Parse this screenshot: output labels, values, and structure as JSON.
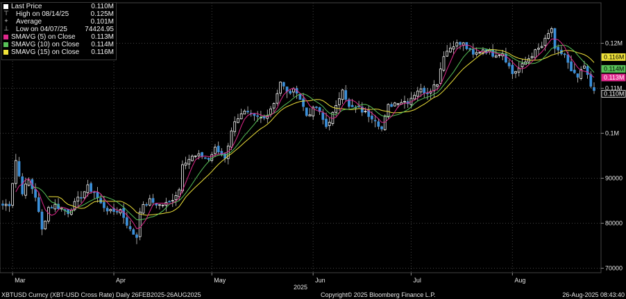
{
  "legend": {
    "items": [
      {
        "label": "Last Price",
        "value": "0.110M",
        "color": "#ffffff",
        "icon": "square-swatch"
      },
      {
        "label": "High on 08/14/25",
        "value": "0.125M",
        "color": "#ffffff",
        "icon": "high-marker"
      },
      {
        "label": "Average",
        "value": "0.101M",
        "color": "#cccccc",
        "icon": "average-marker"
      },
      {
        "label": "Low on 04/07/25",
        "value": "74424.95",
        "color": "#cccccc",
        "icon": "low-marker"
      },
      {
        "label": "SMAVG (5)  on Close",
        "value": "0.113M",
        "color": "#e0288c",
        "icon": "square-swatch"
      },
      {
        "label": "SMAVG (10)  on Close",
        "value": "0.114M",
        "color": "#58c258",
        "icon": "square-swatch"
      },
      {
        "label": "SMAVG (15)  on Close",
        "value": "0.116M",
        "color": "#f0e33a",
        "icon": "square-swatch"
      }
    ]
  },
  "footer": {
    "left": "XBTUSD Curncy (XBT-USD Cross Rate)  Daily 26FEB2025-26AUG2025",
    "center": "Copyright© 2025 Bloomberg Finance L.P.",
    "right": "26-Aug-2025 08:43:40"
  },
  "chart_data": {
    "type": "candlestick",
    "y_axis": {
      "side": "right",
      "ticks": [
        {
          "value": 70000,
          "label": "70000"
        },
        {
          "value": 80000,
          "label": "80000"
        },
        {
          "value": 90000,
          "label": "90000"
        },
        {
          "value": 100000,
          "label": "0.1M"
        },
        {
          "value": 110000,
          "label": "0.11M"
        },
        {
          "value": 120000,
          "label": "0.12M"
        }
      ],
      "range": [
        69000,
        129000
      ],
      "grid": true
    },
    "x_axis": {
      "months": [
        {
          "label": "Mar",
          "date": "2025-03-01"
        },
        {
          "label": "Apr",
          "date": "2025-04-01"
        },
        {
          "label": "May",
          "date": "2025-05-01"
        },
        {
          "label": "Jun",
          "date": "2025-06-01"
        },
        {
          "label": "Jul",
          "date": "2025-07-01"
        },
        {
          "label": "Aug",
          "date": "2025-08-01"
        }
      ],
      "year_label": "2025",
      "start": "2025-02-26",
      "end": "2025-08-26",
      "grid": true
    },
    "series_colors": {
      "up": "#ffffff",
      "down": "#3b8fd9",
      "sma5": "#e0288c",
      "sma10": "#58c258",
      "sma15": "#f0e33a"
    },
    "last_value_labels": [
      {
        "value": 116000,
        "label": "0.116M",
        "color": "#f0e33a"
      },
      {
        "value": 114000,
        "label": "0.114M",
        "color": "#58c258"
      },
      {
        "value": 113000,
        "label": "0.113M",
        "color": "#e0288c"
      },
      {
        "value": 110000,
        "label": "0.110M",
        "color": "#ffffff"
      }
    ],
    "closes": [
      {
        "date": "2025-02-26",
        "close": 84000
      },
      {
        "date": "2025-02-28",
        "close": 84300
      },
      {
        "date": "2025-03-02",
        "close": 94000
      },
      {
        "date": "2025-03-04",
        "close": 87000
      },
      {
        "date": "2025-03-06",
        "close": 89500
      },
      {
        "date": "2025-03-08",
        "close": 86000
      },
      {
        "date": "2025-03-10",
        "close": 78500
      },
      {
        "date": "2025-03-12",
        "close": 83500
      },
      {
        "date": "2025-03-14",
        "close": 84000
      },
      {
        "date": "2025-03-18",
        "close": 82500
      },
      {
        "date": "2025-03-20",
        "close": 84300
      },
      {
        "date": "2025-03-24",
        "close": 88000
      },
      {
        "date": "2025-03-26",
        "close": 86900
      },
      {
        "date": "2025-03-28",
        "close": 84300
      },
      {
        "date": "2025-03-31",
        "close": 82500
      },
      {
        "date": "2025-04-03",
        "close": 83000
      },
      {
        "date": "2025-04-06",
        "close": 78400
      },
      {
        "date": "2025-04-08",
        "close": 77000
      },
      {
        "date": "2025-04-09",
        "close": 83000
      },
      {
        "date": "2025-04-12",
        "close": 85000
      },
      {
        "date": "2025-04-15",
        "close": 84000
      },
      {
        "date": "2025-04-18",
        "close": 84500
      },
      {
        "date": "2025-04-21",
        "close": 87500
      },
      {
        "date": "2025-04-22",
        "close": 93500
      },
      {
        "date": "2025-04-25",
        "close": 94700
      },
      {
        "date": "2025-04-28",
        "close": 95000
      },
      {
        "date": "2025-04-30",
        "close": 94200
      },
      {
        "date": "2025-05-02",
        "close": 96500
      },
      {
        "date": "2025-05-05",
        "close": 94700
      },
      {
        "date": "2025-05-08",
        "close": 103000
      },
      {
        "date": "2025-05-11",
        "close": 104500
      },
      {
        "date": "2025-05-14",
        "close": 103500
      },
      {
        "date": "2025-05-17",
        "close": 103300
      },
      {
        "date": "2025-05-20",
        "close": 106800
      },
      {
        "date": "2025-05-22",
        "close": 111500
      },
      {
        "date": "2025-05-24",
        "close": 109000
      },
      {
        "date": "2025-05-27",
        "close": 109500
      },
      {
        "date": "2025-05-30",
        "close": 104000
      },
      {
        "date": "2025-06-02",
        "close": 105800
      },
      {
        "date": "2025-06-05",
        "close": 101500
      },
      {
        "date": "2025-06-08",
        "close": 105700
      },
      {
        "date": "2025-06-10",
        "close": 110200
      },
      {
        "date": "2025-06-12",
        "close": 105700
      },
      {
        "date": "2025-06-15",
        "close": 105500
      },
      {
        "date": "2025-06-17",
        "close": 104500
      },
      {
        "date": "2025-06-20",
        "close": 103300
      },
      {
        "date": "2025-06-22",
        "close": 100900
      },
      {
        "date": "2025-06-24",
        "close": 106000
      },
      {
        "date": "2025-06-27",
        "close": 107100
      },
      {
        "date": "2025-06-30",
        "close": 107100
      },
      {
        "date": "2025-07-03",
        "close": 109600
      },
      {
        "date": "2025-07-06",
        "close": 109200
      },
      {
        "date": "2025-07-09",
        "close": 111300
      },
      {
        "date": "2025-07-11",
        "close": 117500
      },
      {
        "date": "2025-07-14",
        "close": 119800
      },
      {
        "date": "2025-07-17",
        "close": 119800
      },
      {
        "date": "2025-07-20",
        "close": 117300
      },
      {
        "date": "2025-07-23",
        "close": 118700
      },
      {
        "date": "2025-07-26",
        "close": 117600
      },
      {
        "date": "2025-07-29",
        "close": 117900
      },
      {
        "date": "2025-08-01",
        "close": 113300
      },
      {
        "date": "2025-08-04",
        "close": 115000
      },
      {
        "date": "2025-08-07",
        "close": 117500
      },
      {
        "date": "2025-08-10",
        "close": 119300
      },
      {
        "date": "2025-08-13",
        "close": 123300
      },
      {
        "date": "2025-08-14",
        "close": 118300
      },
      {
        "date": "2025-08-17",
        "close": 117500
      },
      {
        "date": "2025-08-19",
        "close": 113500
      },
      {
        "date": "2025-08-21",
        "close": 112400
      },
      {
        "date": "2025-08-23",
        "close": 114800
      },
      {
        "date": "2025-08-25",
        "close": 110500
      },
      {
        "date": "2025-08-26",
        "close": 110000
      }
    ]
  }
}
